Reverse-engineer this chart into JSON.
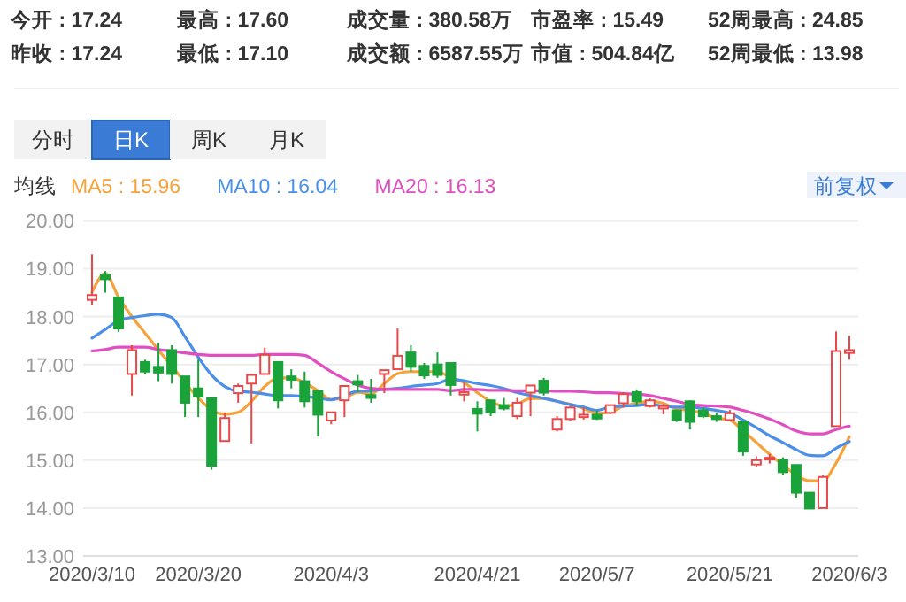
{
  "chart_data": [
    {
      "type": "other",
      "annotations": [
        "今开 : 17.24",
        "最高 : 17.60",
        "成交量 : 380.58万",
        "市盈率 : 15.49",
        "52周最高 : 24.85",
        "昨收 : 17.24",
        "最低 : 17.10",
        "成交额 : 6587.55万",
        "市值 : 504.84亿",
        "52周最低 : 13.98",
        "分时",
        "日K",
        "周K",
        "月K",
        "前复权"
      ]
    },
    {
      "type": "candlestick",
      "categories": [
        "2020/3/10",
        null,
        null,
        null,
        null,
        null,
        null,
        null,
        "2020/3/20",
        null,
        null,
        null,
        null,
        null,
        null,
        null,
        null,
        null,
        "2020/4/3",
        null,
        null,
        null,
        null,
        null,
        null,
        null,
        null,
        null,
        null,
        "2020/4/21",
        null,
        null,
        null,
        null,
        null,
        null,
        null,
        null,
        "2020/5/7",
        null,
        null,
        null,
        null,
        null,
        null,
        null,
        null,
        null,
        "2020/5/21",
        null,
        null,
        null,
        null,
        null,
        null,
        null,
        null,
        "2020/6/3"
      ],
      "ohlc": [
        [
          18.35,
          19.3,
          18.25,
          18.45
        ],
        [
          18.88,
          18.95,
          18.5,
          18.78
        ],
        [
          18.4,
          18.4,
          17.68,
          17.75
        ],
        [
          16.8,
          17.4,
          16.35,
          17.3
        ],
        [
          17.05,
          17.1,
          16.8,
          16.85
        ],
        [
          16.95,
          17.45,
          16.65,
          16.83
        ],
        [
          17.3,
          17.4,
          16.6,
          16.8
        ],
        [
          16.75,
          16.75,
          15.9,
          16.2
        ],
        [
          16.5,
          17.1,
          15.9,
          16.33
        ],
        [
          16.3,
          16.3,
          14.8,
          14.88
        ],
        [
          15.4,
          16.0,
          15.4,
          15.88
        ],
        [
          16.4,
          16.6,
          16.2,
          16.55
        ],
        [
          16.6,
          16.8,
          15.35,
          16.78
        ],
        [
          16.8,
          17.35,
          16.8,
          17.2
        ],
        [
          17.05,
          17.05,
          16.08,
          16.25
        ],
        [
          16.75,
          16.9,
          16.5,
          16.68
        ],
        [
          16.65,
          16.85,
          16.1,
          16.23
        ],
        [
          16.45,
          16.45,
          15.5,
          15.95
        ],
        [
          15.83,
          16.0,
          15.75,
          16.0
        ],
        [
          16.25,
          16.55,
          15.9,
          16.55
        ],
        [
          16.65,
          16.78,
          16.42,
          16.58
        ],
        [
          16.36,
          16.7,
          16.2,
          16.3
        ],
        [
          16.8,
          16.88,
          16.4,
          16.88
        ],
        [
          16.9,
          17.75,
          16.9,
          17.18
        ],
        [
          17.25,
          17.4,
          16.85,
          16.95
        ],
        [
          16.97,
          17.03,
          16.7,
          16.77
        ],
        [
          17.0,
          17.25,
          16.72,
          16.78
        ],
        [
          17.03,
          17.03,
          16.35,
          16.57
        ],
        [
          16.37,
          16.62,
          16.23,
          16.42
        ],
        [
          16.07,
          16.23,
          15.6,
          15.97
        ],
        [
          16.25,
          16.25,
          15.92,
          16.0
        ],
        [
          16.15,
          16.3,
          16.04,
          16.08
        ],
        [
          15.92,
          16.3,
          15.86,
          16.2
        ],
        [
          16.41,
          16.56,
          15.92,
          16.56
        ],
        [
          16.66,
          16.72,
          16.35,
          16.41
        ],
        [
          15.64,
          15.92,
          15.6,
          15.86
        ],
        [
          15.86,
          16.13,
          15.83,
          16.1
        ],
        [
          15.9,
          16.1,
          15.85,
          15.95
        ],
        [
          15.95,
          16.04,
          15.84,
          15.87
        ],
        [
          15.99,
          16.15,
          15.96,
          16.15
        ],
        [
          16.19,
          16.42,
          16.1,
          16.38
        ],
        [
          16.42,
          16.48,
          16.13,
          16.23
        ],
        [
          16.13,
          16.29,
          16.1,
          16.25
        ],
        [
          16.08,
          16.17,
          15.96,
          16.13
        ],
        [
          16.04,
          16.04,
          15.8,
          15.84
        ],
        [
          16.23,
          16.25,
          15.64,
          15.8
        ],
        [
          16.04,
          16.1,
          15.88,
          15.92
        ],
        [
          15.92,
          15.98,
          15.8,
          15.86
        ],
        [
          15.84,
          16.05,
          15.84,
          15.98
        ],
        [
          15.8,
          15.8,
          15.09,
          15.18
        ],
        [
          14.91,
          15.08,
          14.86,
          15.0
        ],
        [
          15.02,
          15.13,
          14.93,
          15.05
        ],
        [
          15.0,
          15.06,
          14.7,
          14.75
        ],
        [
          14.9,
          14.9,
          14.2,
          14.32
        ],
        [
          14.32,
          14.32,
          13.99,
          13.99
        ],
        [
          14.0,
          14.68,
          14.0,
          14.65
        ],
        [
          15.71,
          17.69,
          15.71,
          17.28
        ],
        [
          17.24,
          17.6,
          17.1,
          17.3
        ]
      ],
      "colors": [
        "#e8484a",
        "#1aa33a",
        "#1aa33a",
        "#e8484a",
        "#1aa33a",
        "#1aa33a",
        "#1aa33a",
        "#1aa33a",
        "#1aa33a",
        "#1aa33a",
        "#e8484a",
        "#e8484a",
        "#e8484a",
        "#e8484a",
        "#1aa33a",
        "#1aa33a",
        "#1aa33a",
        "#1aa33a",
        "#e8484a",
        "#e8484a",
        "#1aa33a",
        "#1aa33a",
        "#e8484a",
        "#e8484a",
        "#1aa33a",
        "#1aa33a",
        "#1aa33a",
        "#1aa33a",
        "#e8484a",
        "#1aa33a",
        "#1aa33a",
        "#1aa33a",
        "#e8484a",
        "#e8484a",
        "#1aa33a",
        "#e8484a",
        "#e8484a",
        "#e8484a",
        "#1aa33a",
        "#e8484a",
        "#e8484a",
        "#1aa33a",
        "#e8484a",
        "#e8484a",
        "#1aa33a",
        "#1aa33a",
        "#1aa33a",
        "#1aa33a",
        "#e8484a",
        "#1aa33a",
        "#e8484a",
        "#e8484a",
        "#1aa33a",
        "#1aa33a",
        "#1aa33a",
        "#e8484a",
        "#e8484a",
        "#e8484a"
      ],
      "series": [
        {
          "type": "line",
          "name": "MA5 : 15.96",
          "color": "#f5a23b",
          "values": [
            18.51,
            18.9,
            18.4,
            18.0,
            17.65,
            17.3,
            16.97,
            16.62,
            16.3,
            16.05,
            15.96,
            16.0,
            16.23,
            16.54,
            16.72,
            16.72,
            16.62,
            16.45,
            16.27,
            16.3,
            16.42,
            16.38,
            16.6,
            16.81,
            16.85,
            16.85,
            16.85,
            16.72,
            16.62,
            16.41,
            16.23,
            16.13,
            16.17,
            16.29,
            16.29,
            16.23,
            16.17,
            16.08,
            15.98,
            16.0,
            16.13,
            16.19,
            16.23,
            16.19,
            16.07,
            16.04,
            15.98,
            15.88,
            15.84,
            15.61,
            15.37,
            15.12,
            14.9,
            14.69,
            14.57,
            14.57,
            14.94,
            15.49
          ]
        },
        {
          "type": "line",
          "name": "MA10 : 16.04",
          "color": "#4b8fe8",
          "values": [
            17.55,
            17.73,
            17.92,
            17.98,
            18.02,
            18.05,
            17.98,
            17.58,
            17.15,
            16.78,
            16.54,
            16.44,
            16.42,
            16.38,
            16.35,
            16.35,
            16.33,
            16.3,
            16.26,
            16.35,
            16.44,
            16.45,
            16.48,
            16.5,
            16.54,
            16.57,
            16.6,
            16.69,
            16.66,
            16.6,
            16.56,
            16.5,
            16.41,
            16.35,
            16.29,
            16.23,
            16.16,
            16.11,
            16.04,
            16.11,
            16.13,
            16.14,
            16.17,
            16.13,
            16.11,
            16.11,
            16.08,
            16.04,
            15.98,
            15.84,
            15.68,
            15.51,
            15.37,
            15.22,
            15.1,
            15.09,
            15.25,
            15.39
          ]
        },
        {
          "type": "line",
          "name": "MA20 : 16.13",
          "color": "#e04ec0",
          "values": [
            17.28,
            17.31,
            17.36,
            17.36,
            17.36,
            17.31,
            17.28,
            17.24,
            17.21,
            17.19,
            17.19,
            17.19,
            17.19,
            17.21,
            17.21,
            17.21,
            17.19,
            17.03,
            16.85,
            16.7,
            16.57,
            16.5,
            16.48,
            16.48,
            16.48,
            16.48,
            16.48,
            16.45,
            16.48,
            16.48,
            16.46,
            16.46,
            16.45,
            16.45,
            16.45,
            16.44,
            16.44,
            16.43,
            16.41,
            16.41,
            16.39,
            16.38,
            16.35,
            16.29,
            16.23,
            16.17,
            16.14,
            16.13,
            16.11,
            16.04,
            15.96,
            15.86,
            15.74,
            15.61,
            15.55,
            15.55,
            15.64,
            15.71
          ]
        }
      ],
      "legend_title": "均线",
      "legend": "top left",
      "ylim": [
        13,
        20
      ],
      "yticks": [
        {
          "value": 13,
          "label": "13.00"
        },
        {
          "value": 14,
          "label": "14.00"
        },
        {
          "value": 15,
          "label": "15.00"
        },
        {
          "value": 16,
          "label": "16.00"
        },
        {
          "value": 17,
          "label": "17.00"
        },
        {
          "value": 18,
          "label": "18.00"
        },
        {
          "value": 19,
          "label": "19.00"
        },
        {
          "value": 20,
          "label": "20.00"
        }
      ],
      "grid": "y"
    }
  ]
}
